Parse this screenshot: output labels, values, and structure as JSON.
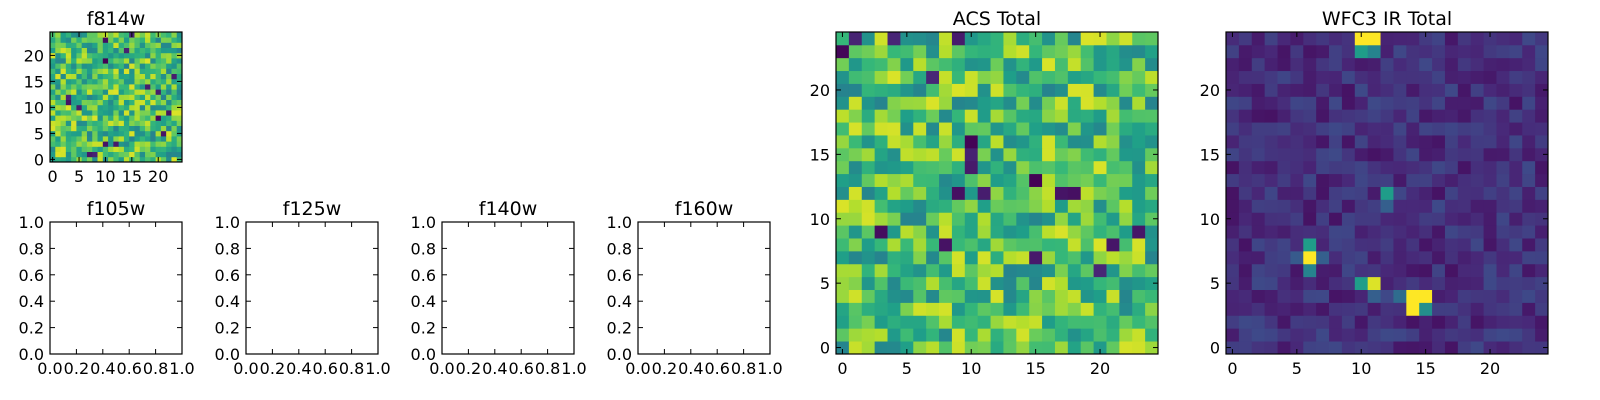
{
  "chart_data": [
    {
      "type": "heatmap",
      "title": "f814w",
      "xlim": [
        -0.5,
        24.5
      ],
      "ylim": [
        -0.5,
        24.5
      ],
      "xticks": [
        "0",
        "5",
        "10",
        "15",
        "20"
      ],
      "yticks": [
        "0",
        "5",
        "10",
        "15",
        "20"
      ],
      "colormap": "viridis",
      "grid": "25x25 pixel values (pseudo-random noise, mostly high values)"
    },
    {
      "type": "heatmap",
      "title": "ACS Total",
      "xlim": [
        -0.5,
        24.5
      ],
      "ylim": [
        -0.5,
        24.5
      ],
      "xticks": [
        "0",
        "5",
        "10",
        "15",
        "20"
      ],
      "yticks": [
        "0",
        "5",
        "10",
        "15",
        "20"
      ],
      "colormap": "viridis"
    },
    {
      "type": "heatmap",
      "title": "WFC3 IR Total",
      "xlim": [
        -0.5,
        24.5
      ],
      "ylim": [
        -0.5,
        24.5
      ],
      "xticks": [
        "0",
        "5",
        "10",
        "15",
        "20"
      ],
      "yticks": [
        "0",
        "5",
        "10",
        "15",
        "20"
      ],
      "colormap": "viridis",
      "bright_spots": [
        {
          "x": 10.5,
          "y": 24,
          "value": 1.0
        },
        {
          "x": 6,
          "y": 7,
          "value": 0.95
        },
        {
          "x": 11,
          "y": 5,
          "value": 0.9
        },
        {
          "x": 14.5,
          "y": 3.5,
          "value": 1.0
        },
        {
          "x": 12,
          "y": 12,
          "value": 0.65
        }
      ]
    },
    {
      "type": "empty",
      "title": "f105w",
      "xticks": [
        "0.0",
        "0.2",
        "0.4",
        "0.6",
        "0.8",
        "1.0"
      ],
      "yticks": [
        "0.0",
        "0.2",
        "0.4",
        "0.6",
        "0.8",
        "1.0"
      ],
      "xlim": [
        0,
        1
      ],
      "ylim": [
        0,
        1
      ]
    },
    {
      "type": "empty",
      "title": "f125w",
      "xticks": [
        "0.0",
        "0.2",
        "0.4",
        "0.6",
        "0.8",
        "1.0"
      ],
      "yticks": [
        "0.0",
        "0.2",
        "0.4",
        "0.6",
        "0.8",
        "1.0"
      ],
      "xlim": [
        0,
        1
      ],
      "ylim": [
        0,
        1
      ]
    },
    {
      "type": "empty",
      "title": "f140w",
      "xticks": [
        "0.0",
        "0.2",
        "0.4",
        "0.6",
        "0.8",
        "1.0"
      ],
      "yticks": [
        "0.0",
        "0.2",
        "0.4",
        "0.6",
        "0.8",
        "1.0"
      ],
      "xlim": [
        0,
        1
      ],
      "ylim": [
        0,
        1
      ]
    },
    {
      "type": "empty",
      "title": "f160w",
      "xticks": [
        "0.0",
        "0.2",
        "0.4",
        "0.6",
        "0.8",
        "1.0"
      ],
      "yticks": [
        "0.0",
        "0.2",
        "0.4",
        "0.6",
        "0.8",
        "1.0"
      ],
      "xlim": [
        0,
        1
      ],
      "ylim": [
        0,
        1
      ]
    }
  ]
}
